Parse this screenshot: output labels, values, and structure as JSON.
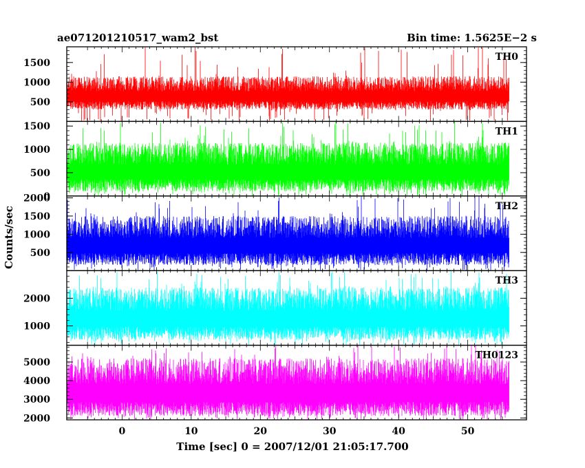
{
  "header": {
    "title": "ae071201210517_wam2_bst",
    "bin_time": "Bin time: 1.5625E−2 s"
  },
  "chart_data": {
    "type": "line",
    "title": "ae071201210517_wam2_bst",
    "subtitle": "Bin time: 1.5625E−2 s",
    "xlabel": "Time [sec] 0 = 2007/12/01 21:05:17.700",
    "ylabel": "Counts/sec",
    "xlim": [
      -8,
      58.5
    ],
    "xticks": [
      0,
      10,
      20,
      30,
      40,
      50
    ],
    "x_range_data": [
      -8,
      56
    ],
    "grid": false,
    "panels": [
      {
        "name": "TH0",
        "color": "#ff0000",
        "ylim": [
          0,
          1900
        ],
        "yticks": [
          500,
          1000,
          1500
        ],
        "baseline_low": 300,
        "typical_high": 1150,
        "peak_max": 1900
      },
      {
        "name": "TH1",
        "color": "#00ff00",
        "ylim": [
          0,
          1600
        ],
        "yticks": [
          0,
          500,
          1000,
          1500
        ],
        "baseline_low": 100,
        "typical_high": 1150,
        "peak_max": 1600
      },
      {
        "name": "TH2",
        "color": "#0000ff",
        "ylim": [
          0,
          2050
        ],
        "yticks": [
          500,
          1000,
          1500,
          2000
        ],
        "baseline_low": 150,
        "typical_high": 1500,
        "peak_max": 2050
      },
      {
        "name": "TH3",
        "color": "#00ffff",
        "ylim": [
          300,
          3000
        ],
        "yticks": [
          1000,
          2000
        ],
        "baseline_low": 500,
        "typical_high": 2400,
        "peak_max": 3000
      },
      {
        "name": "TH0123",
        "color": "#ff00ff",
        "ylim": [
          1900,
          5900
        ],
        "yticks": [
          2000,
          3000,
          4000,
          5000
        ],
        "baseline_low": 2100,
        "typical_high": 5200,
        "peak_max": 5900
      }
    ]
  }
}
